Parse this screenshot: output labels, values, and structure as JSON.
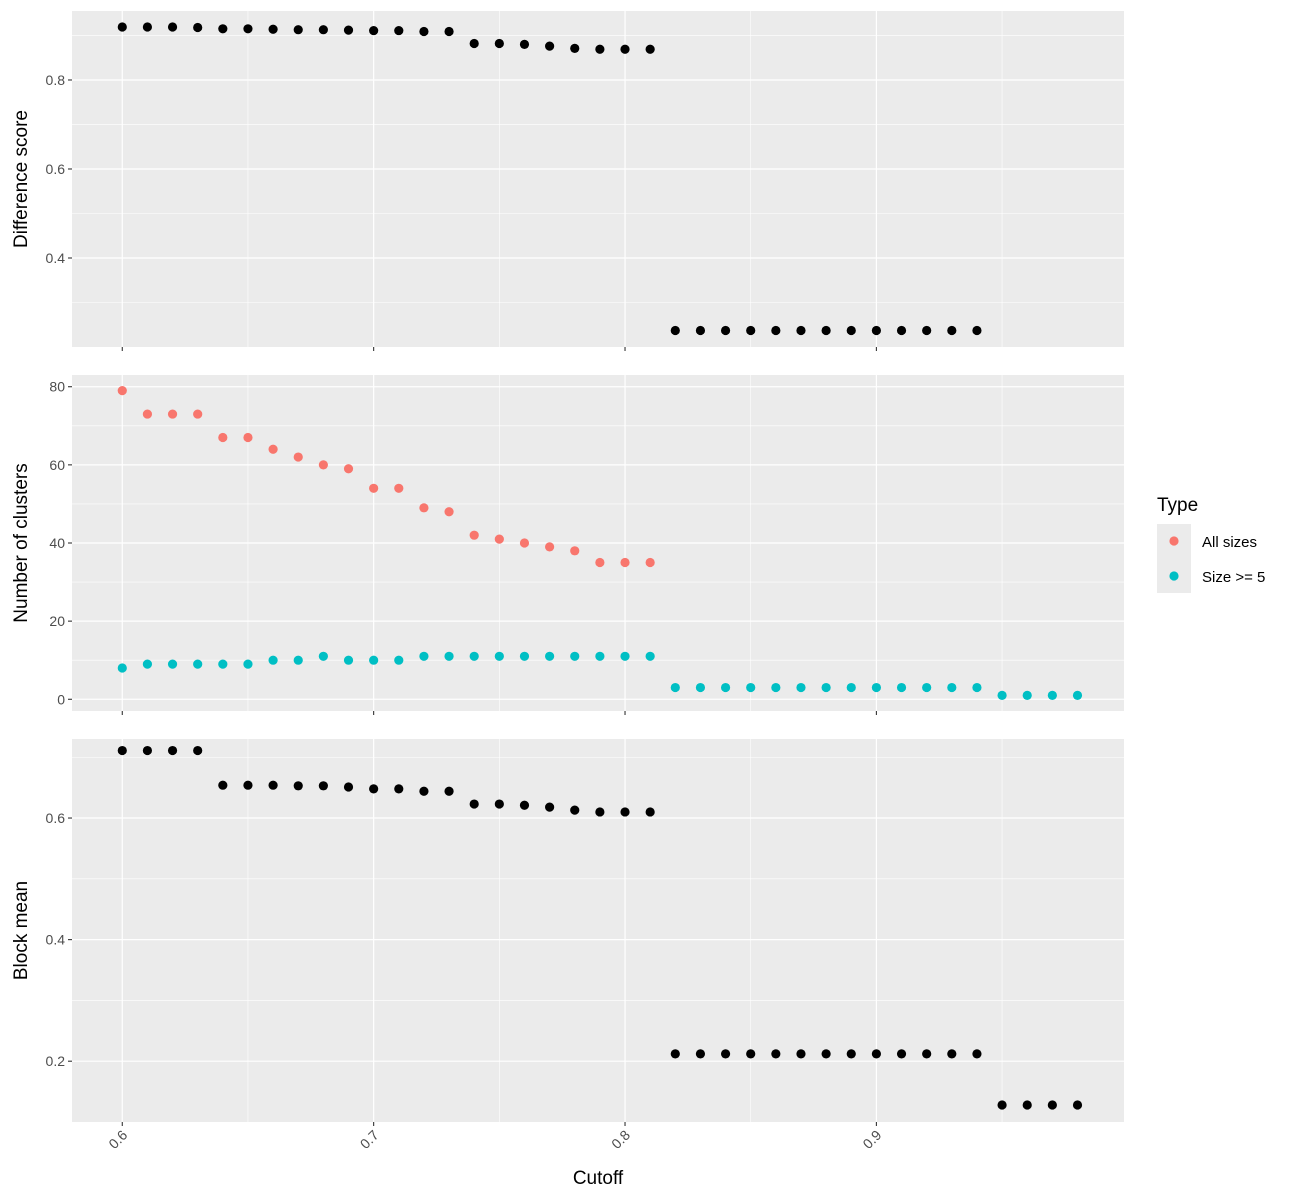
{
  "chart_data": {
    "type": "scatter",
    "xlabel": "Cutoff",
    "xlim": [
      0.58,
      0.9985
    ],
    "x_ticks": [
      0.6,
      0.7,
      0.8,
      0.9
    ],
    "x_tick_labels": [
      "0.6",
      "0.7",
      "0.8",
      "0.9"
    ],
    "grid": true,
    "legend_position": "right",
    "legend": {
      "title": "Type",
      "entries": [
        {
          "label": "All sizes",
          "color": "#F8766D"
        },
        {
          "label": "Size >= 5",
          "color": "#00BFC4"
        }
      ]
    },
    "panels": [
      {
        "ylabel": "Difference score",
        "ylim": [
          0.2,
          0.955
        ],
        "y_ticks": [
          0.4,
          0.6,
          0.8
        ],
        "y_tick_labels": [
          "0.4",
          "0.6",
          "0.8"
        ],
        "series": [
          {
            "color": "#000000",
            "x": [
              0.6,
              0.61,
              0.62,
              0.63,
              0.64,
              0.65,
              0.66,
              0.67,
              0.68,
              0.69,
              0.7,
              0.71,
              0.72,
              0.73,
              0.74,
              0.75,
              0.76,
              0.77,
              0.78,
              0.79,
              0.8,
              0.81,
              0.82,
              0.83,
              0.84,
              0.85,
              0.86,
              0.87,
              0.88,
              0.89,
              0.9,
              0.91,
              0.92,
              0.93,
              0.94
            ],
            "y": [
              0.919,
              0.919,
              0.919,
              0.918,
              0.915,
              0.915,
              0.914,
              0.913,
              0.913,
              0.912,
              0.911,
              0.911,
              0.909,
              0.909,
              0.882,
              0.882,
              0.88,
              0.876,
              0.871,
              0.869,
              0.869,
              0.869,
              0.237,
              0.237,
              0.237,
              0.237,
              0.237,
              0.237,
              0.237,
              0.237,
              0.237,
              0.237,
              0.237,
              0.237,
              0.237
            ]
          }
        ]
      },
      {
        "ylabel": "Number of clusters",
        "ylim": [
          -3,
          83
        ],
        "y_ticks": [
          0,
          20,
          40,
          60,
          80
        ],
        "y_tick_labels": [
          "0",
          "20",
          "40",
          "60",
          "80"
        ],
        "series": [
          {
            "name": "All sizes",
            "color": "#F8766D",
            "x": [
              0.6,
              0.61,
              0.62,
              0.63,
              0.64,
              0.65,
              0.66,
              0.67,
              0.68,
              0.69,
              0.7,
              0.71,
              0.72,
              0.73,
              0.74,
              0.75,
              0.76,
              0.77,
              0.78,
              0.79,
              0.8,
              0.81
            ],
            "y": [
              79,
              73,
              73,
              73,
              67,
              67,
              64,
              62,
              60,
              59,
              54,
              54,
              49,
              48,
              42,
              41,
              40,
              39,
              38,
              35,
              35,
              35
            ]
          },
          {
            "name": "Size >= 5",
            "color": "#00BFC4",
            "x": [
              0.6,
              0.61,
              0.62,
              0.63,
              0.64,
              0.65,
              0.66,
              0.67,
              0.68,
              0.69,
              0.7,
              0.71,
              0.72,
              0.73,
              0.74,
              0.75,
              0.76,
              0.77,
              0.78,
              0.79,
              0.8,
              0.81,
              0.82,
              0.83,
              0.84,
              0.85,
              0.86,
              0.87,
              0.88,
              0.89,
              0.9,
              0.91,
              0.92,
              0.93,
              0.94,
              0.95,
              0.96,
              0.97,
              0.98
            ],
            "y": [
              8,
              9,
              9,
              9,
              9,
              9,
              10,
              10,
              11,
              10,
              10,
              10,
              11,
              11,
              11,
              11,
              11,
              11,
              11,
              11,
              11,
              11,
              3,
              3,
              3,
              3,
              3,
              3,
              3,
              3,
              3,
              3,
              3,
              3,
              3,
              1,
              1,
              1,
              1
            ]
          }
        ]
      },
      {
        "ylabel": "Block mean",
        "ylim": [
          0.1,
          0.73
        ],
        "y_ticks": [
          0.2,
          0.4,
          0.6
        ],
        "y_tick_labels": [
          "0.2",
          "0.4",
          "0.6"
        ],
        "series": [
          {
            "color": "#000000",
            "x": [
              0.6,
              0.61,
              0.62,
              0.63,
              0.64,
              0.65,
              0.66,
              0.67,
              0.68,
              0.69,
              0.7,
              0.71,
              0.72,
              0.73,
              0.74,
              0.75,
              0.76,
              0.77,
              0.78,
              0.79,
              0.8,
              0.81,
              0.82,
              0.83,
              0.84,
              0.85,
              0.86,
              0.87,
              0.88,
              0.89,
              0.9,
              0.91,
              0.92,
              0.93,
              0.94,
              0.95,
              0.96,
              0.97,
              0.98
            ],
            "y": [
              0.711,
              0.711,
              0.711,
              0.711,
              0.654,
              0.654,
              0.654,
              0.653,
              0.653,
              0.651,
              0.648,
              0.648,
              0.644,
              0.644,
              0.623,
              0.623,
              0.621,
              0.618,
              0.613,
              0.61,
              0.61,
              0.61,
              0.212,
              0.212,
              0.212,
              0.212,
              0.212,
              0.212,
              0.212,
              0.212,
              0.212,
              0.212,
              0.212,
              0.212,
              0.212,
              0.128,
              0.128,
              0.128,
              0.128
            ]
          }
        ]
      }
    ]
  }
}
